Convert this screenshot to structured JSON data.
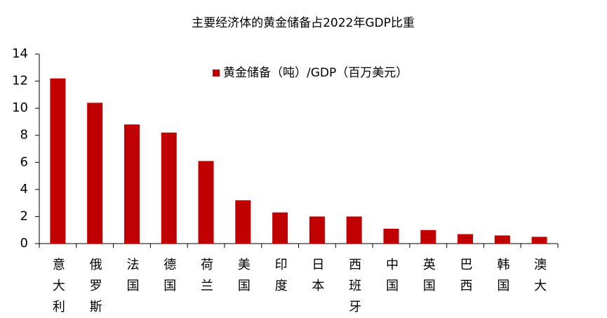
{
  "chart_data": {
    "type": "bar",
    "title": "主要经济体的黄金储备占2022年GDP比重",
    "categories": [
      "意大利",
      "俄罗斯",
      "法国",
      "德国",
      "荷兰",
      "美国",
      "印度",
      "日本",
      "西班牙",
      "中国",
      "英国",
      "巴西",
      "韩国",
      "澳大"
    ],
    "series": [
      {
        "name": "黄金储备（吨）/GDP（百万美元）",
        "color": "#c00000",
        "values": [
          12.2,
          10.4,
          8.8,
          8.2,
          6.1,
          3.2,
          2.3,
          2.0,
          2.0,
          1.1,
          1.0,
          0.7,
          0.6,
          0.5
        ]
      }
    ],
    "ylim": [
      0,
      14
    ],
    "yticks": [
      0,
      2,
      4,
      6,
      8,
      10,
      12,
      14
    ],
    "grid": false,
    "legend": "top"
  }
}
